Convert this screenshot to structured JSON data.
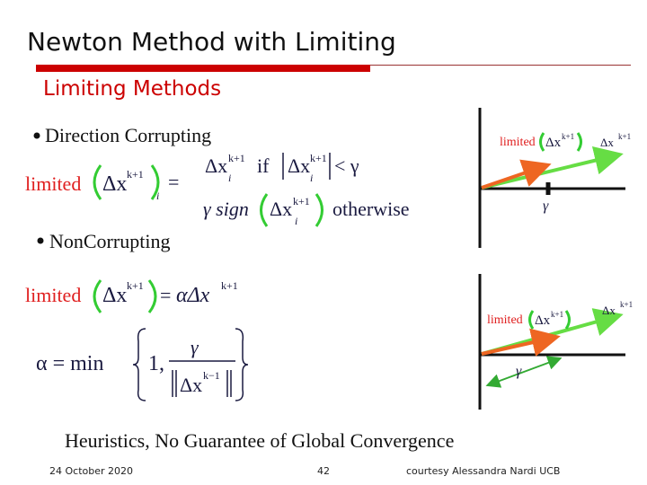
{
  "header": {
    "title": "Newton Method with Limiting",
    "subtitle": "Limiting Methods"
  },
  "direction_corrupting": {
    "bullet": "Direction Corrupting",
    "equation": {
      "limited": "limited",
      "delta": "Δx",
      "sup": "k+1",
      "sub": "i",
      "equals": "=",
      "case_limit": {
        "delta": "Δx",
        "sup": "k+1",
        "sub": "i",
        "if": "if",
        "abs_delta": "Δx",
        "abs_sup": "k+1",
        "abs_sub": "i",
        "less_than": "< γ"
      },
      "case_otherwise": {
        "gamma_sign": "γ sign",
        "delta": "Δx",
        "sup": "k+1",
        "sub": "i",
        "otherwise": "otherwise"
      }
    },
    "figure": {
      "limited": "limited",
      "delta": "Δx",
      "sup": "k+1",
      "full_delta": "Δx",
      "full_sup": "k+1",
      "gamma": "γ"
    }
  },
  "non_corrupting": {
    "bullet": "NonCorrupting",
    "equation": {
      "limited": "limited",
      "delta": "Δx",
      "sup": "k+1",
      "equals": "=",
      "alpha_delta": "αΔx",
      "alpha_sup": "k+1"
    },
    "alpha": {
      "lhs": "α = min",
      "one": "1,",
      "numerator": "γ",
      "denominator": "Δx",
      "denominator_sup": "k−1"
    },
    "figure": {
      "limited": "limited",
      "delta": "Δx",
      "sup": "k+1",
      "full_delta": "Δx",
      "full_sup": "k+1",
      "gamma": "γ"
    }
  },
  "conclusion": "Heuristics, No Guarantee of Global Convergence",
  "footer": {
    "date": "24 October 2020",
    "page": "42",
    "credit": "courtesy Alessandra Nardi UCB"
  }
}
